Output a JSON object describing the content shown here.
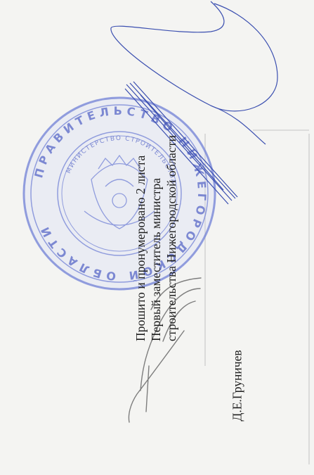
{
  "document": {
    "certification": {
      "line1": "Прошито и пронумеровано 2 листа",
      "line2": "Первый заместитель министра",
      "line3": "строительства Нижегородской области",
      "signatory": "Д.Е.Груничев"
    },
    "seal": {
      "ring_text": "ПРАВИТЕЛЬСТВО НИЖЕГОРОДСКОЙ ОБЛАСТИ",
      "inner_text": "МИНИСТЕРСТВО СТРОИТЕЛЬСТВА"
    },
    "colors": {
      "paper": "#f4f4f2",
      "seal_ink": "#6f7fd6",
      "signature_ink": "#3b4fb0",
      "text": "#1e1e1e",
      "pencil": "#8a8a8a"
    }
  }
}
